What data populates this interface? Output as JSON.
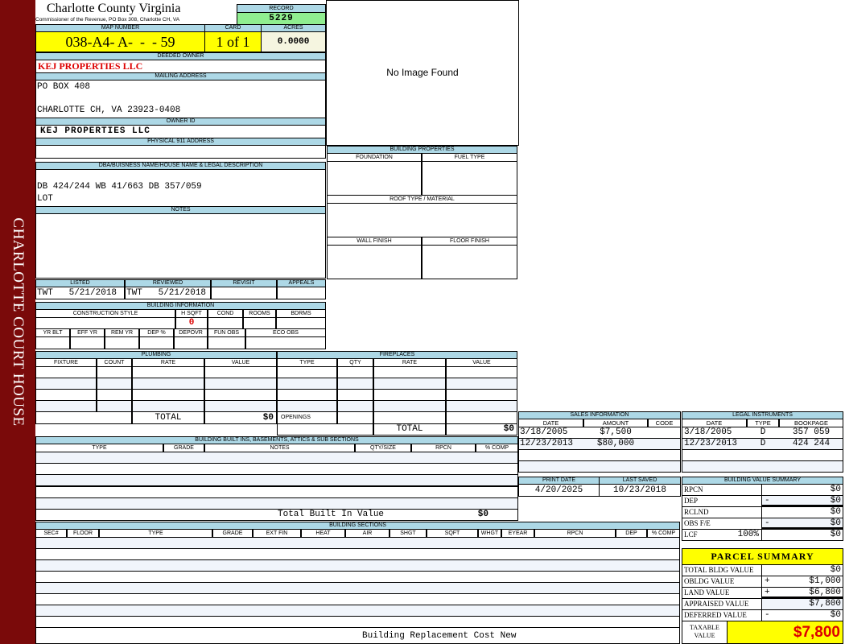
{
  "sidebar": {
    "text": "CHARLOTTE COURT HOUSE"
  },
  "header": {
    "title": "Charlotte County Virginia",
    "subtitle": "Commissioner of the Revenue, PO Box 308, Charlotte CH, VA",
    "record_label": "RECORD",
    "record": "5229",
    "map_label": "MAP NUMBER",
    "map_number": "038-A4- A-  -  - 59",
    "card_label": "CARD",
    "card": "1 of 1",
    "acres_label": "ACRES",
    "acres": "0.0000"
  },
  "owner": {
    "deeded_label": "DEEDED OWNER",
    "deeded": "KEJ PROPERTIES LLC",
    "mailing_label": "MAILING ADDRESS",
    "mailing_line1": "PO BOX 408",
    "mailing_line3": "CHARLOTTE CH, VA 23923-0408",
    "owner_id_label": "OWNER ID",
    "owner_id": "KEJ PROPERTIES LLC",
    "physical_label": "PHYSICAL 911 ADDRESS",
    "physical": ""
  },
  "legal": {
    "label": "DBA/BUISNESS NAME/HOUSE NAME & LEGAL DESCRIPTION",
    "line1": "DB 424/244 WB 41/663 DB 357/059",
    "line2": "LOT",
    "notes_label": "NOTES"
  },
  "image": {
    "placeholder": "No Image Found"
  },
  "building_properties": {
    "title": "BUILDING PROPERTIES",
    "foundation": "FOUNDATION",
    "fuel_type": "FUEL TYPE",
    "roof": "ROOF TYPE / MATERIAL",
    "wall": "WALL FINISH",
    "floor": "FLOOR FINISH"
  },
  "listing": {
    "listed_label": "LISTED",
    "listed": "TWT   5/21/2018",
    "reviewed_label": "REVIEWED",
    "reviewed": "TWT   5/21/2018",
    "revisit_label": "REVISIT",
    "appeals_label": "APPEALS"
  },
  "building_info": {
    "title": "BUILDING INFORMATION",
    "labels1": [
      "CONSTRUCTION STYLE",
      "H SQFT",
      "COND",
      "ROOMS",
      "BDRMS"
    ],
    "hsqft": "0",
    "labels2": [
      "YR BLT",
      "EFF YR",
      "REM YR",
      "DEP %",
      "DEPOVR",
      "FUN OBS",
      "ECO OBS"
    ]
  },
  "plumbing": {
    "title": "PLUMBING",
    "columns": [
      "FIXTURE",
      "COUNT",
      "RATE",
      "VALUE"
    ],
    "total_label": "TOTAL",
    "total": "$0"
  },
  "fireplaces": {
    "title": "FIREPLACES",
    "columns": [
      "TYPE",
      "QTY",
      "RATE",
      "VALUE"
    ],
    "openings_label": "OPENINGS",
    "total_label": "TOTAL",
    "total": "$0"
  },
  "builtins": {
    "title": "BUILDING BUILT INS, BASEMENTS, ATTICS & SUB SECTIONS",
    "columns": [
      "TYPE",
      "GRADE",
      "NOTES",
      "QTY/SIZE",
      "RPCN",
      "% COMP"
    ],
    "total_label": "Total Built In Value",
    "total": "$0"
  },
  "sections": {
    "title": "BUILDING SECTIONS",
    "columns": [
      "SEC#",
      "FLOOR",
      "TYPE",
      "GRADE",
      "EXT FIN",
      "HEAT",
      "AIR",
      "SHGT",
      "SQFT",
      "WHGT",
      "EYEAR",
      "RPCN",
      "DEP",
      "% COMP"
    ],
    "footer": "Building Replacement Cost New"
  },
  "sales": {
    "title": "SALES INFORMATION",
    "columns": [
      "DATE",
      "AMOUNT",
      "CODE"
    ],
    "rows": [
      [
        "3/18/2005",
        "$7,500",
        ""
      ],
      [
        "12/23/2013",
        "$80,000",
        ""
      ]
    ]
  },
  "legal_instruments": {
    "title": "LEGAL INSTRUMENTS",
    "columns": [
      "DATE",
      "TYPE",
      "BOOKPAGE"
    ],
    "rows": [
      [
        "3/18/2005",
        "D",
        "357 059"
      ],
      [
        "12/23/2013",
        "D",
        "424 244"
      ]
    ]
  },
  "print": {
    "print_label": "PRINT DATE",
    "print_date": "4/20/2025",
    "saved_label": "LAST SAVED",
    "last_saved": "10/23/2018"
  },
  "bvs": {
    "title": "BUILDING VALUE SUMMARY",
    "rows": [
      {
        "label": "RPCN",
        "extra": "",
        "sign": "",
        "value": "$0"
      },
      {
        "label": "DEP",
        "extra": "",
        "sign": "-",
        "value": "$0"
      },
      {
        "label": "RCLND",
        "extra": "",
        "sign": "",
        "value": "$0"
      },
      {
        "label": "OBS F/E",
        "extra": "",
        "sign": "-",
        "value": "$0"
      },
      {
        "label": "LCF",
        "extra": "100%",
        "sign": "",
        "value": "$0"
      }
    ]
  },
  "parcel": {
    "title": "PARCEL SUMMARY",
    "rows": [
      {
        "label": "TOTAL BLDG VALUE",
        "sign": "",
        "value": "$0"
      },
      {
        "label": "OBLDG VALUE",
        "sign": "+",
        "value": "$1,000"
      },
      {
        "label": "LAND VALUE",
        "sign": "+",
        "value": "$6,800"
      },
      {
        "label": "APPRAISED VALUE",
        "sign": "",
        "value": "$7,800"
      },
      {
        "label": "DEFERRED VALUE",
        "sign": "-",
        "value": "$0"
      }
    ],
    "taxable_label": "TAXABLE VALUE",
    "taxable": "$7,800"
  },
  "colors": {
    "sidebar": "#7a0a0a",
    "header": "#add8e6",
    "record": "#90ee90",
    "highlight": "#ffff00",
    "owner_red": "#dd0000"
  }
}
